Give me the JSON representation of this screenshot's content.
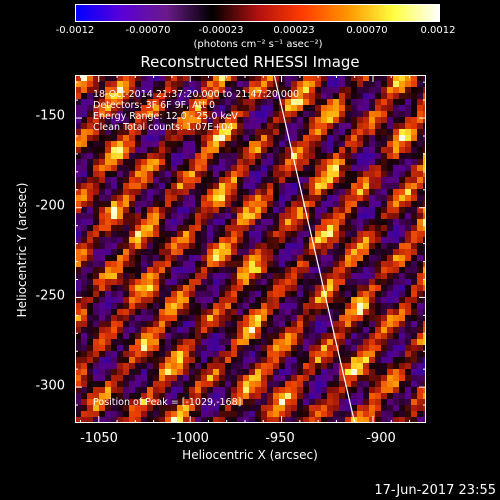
{
  "colorbar": {
    "ticks": [
      "-0.0012",
      "-0.00070",
      "-0.00023",
      "0.00023",
      "0.00070",
      "0.0012"
    ],
    "units": "(photons cm⁻² s⁻¹ asec⁻²)",
    "colors": [
      "#0000ff",
      "#5a00d8",
      "#6a1a8a",
      "#000000",
      "#b01010",
      "#ff3c00",
      "#ff9600",
      "#ffff40",
      "#ffffff"
    ]
  },
  "title": "Reconstructed RHESSI Image",
  "info": {
    "line1": "18-Oct-2014 21:37:20.000 to 21:47:20.000",
    "line2": "Detectors: 3F 6F 9F, Att 0",
    "line3": "Energy Range: 12.0 - 25.0 keV",
    "line4": "Clean      Total counts: 1.07E+04"
  },
  "peak": "Position of Peak = [-1029,-168]",
  "xlabel": "Heliocentric X (arcsec)",
  "ylabel": "Heliocentric Y (arcsec)",
  "x_ticks": [
    "-1050",
    "-1000",
    "-950",
    "-900"
  ],
  "y_ticks": [
    "-150",
    "-200",
    "-250",
    "-300"
  ],
  "timestamp": "17-Jun-2017 23:55",
  "chart_data": {
    "type": "heatmap",
    "title": "Reconstructed RHESSI Image",
    "xlabel": "Heliocentric X (arcsec)",
    "ylabel": "Heliocentric Y (arcsec)",
    "xlim": [
      -1063,
      -871
    ],
    "ylim": [
      -320,
      -126
    ],
    "x_ticks": [
      -1050,
      -1000,
      -950,
      -900
    ],
    "y_ticks": [
      -150,
      -200,
      -250,
      -300
    ],
    "colorbar_range": [
      -0.0012,
      0.0012
    ],
    "limb_line": [
      [
        -954,
        -126
      ],
      [
        -910,
        -320
      ]
    ],
    "peak_position": [
      -1029,
      -168
    ]
  }
}
